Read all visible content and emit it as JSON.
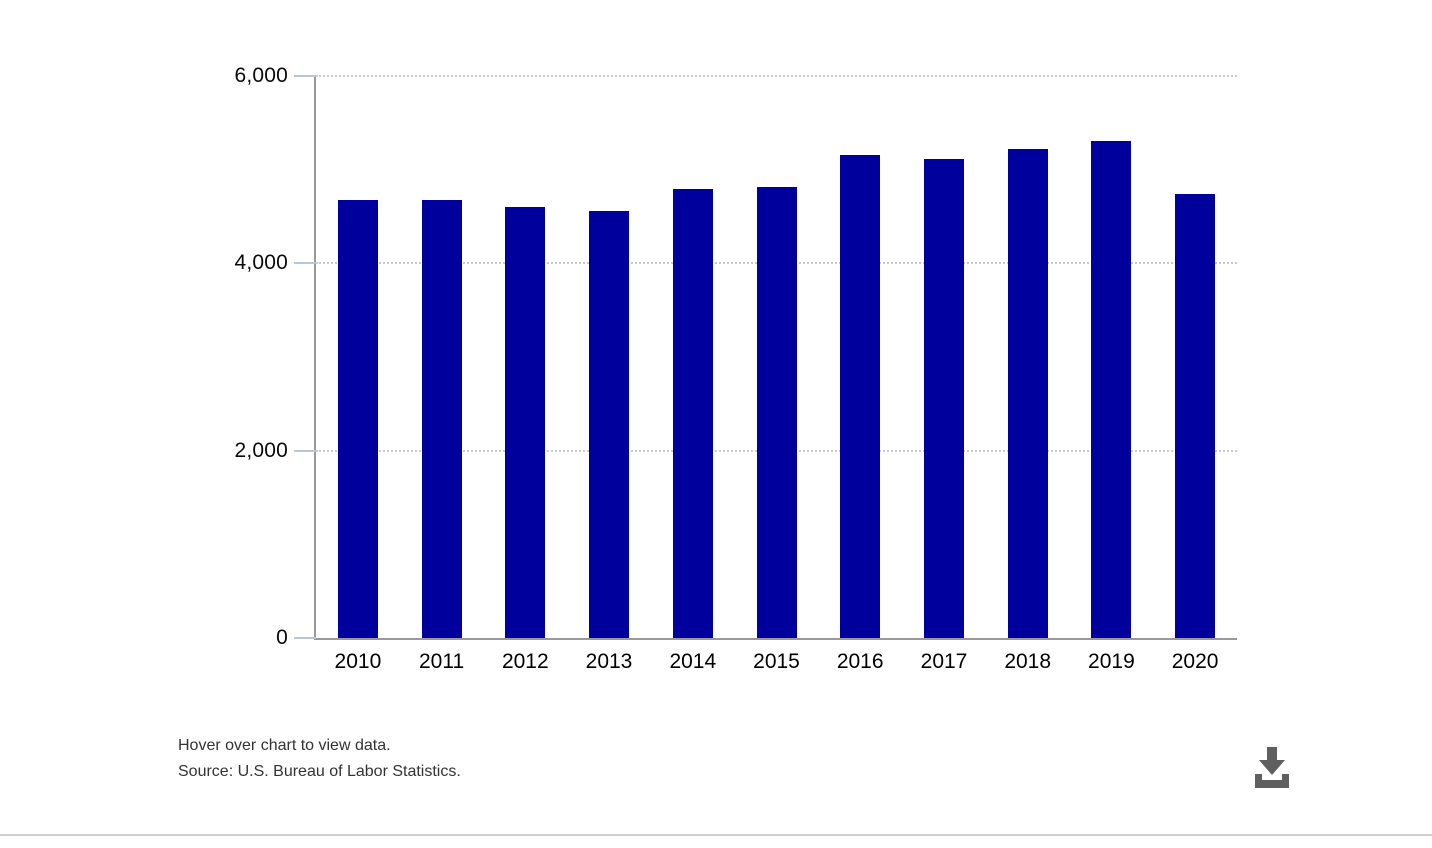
{
  "chart_data": {
    "type": "bar",
    "title": "",
    "categories": [
      "2010",
      "2011",
      "2012",
      "2013",
      "2014",
      "2015",
      "2016",
      "2017",
      "2018",
      "2019",
      "2020"
    ],
    "values": [
      4680,
      4680,
      4600,
      4560,
      4790,
      4820,
      5160,
      5110,
      5220,
      5310,
      4740
    ],
    "ylim": [
      0,
      6000
    ],
    "yticks": [
      {
        "value": 0,
        "label": "0"
      },
      {
        "value": 2000,
        "label": "2,000"
      },
      {
        "value": 4000,
        "label": "4,000"
      },
      {
        "value": 6000,
        "label": "6,000"
      }
    ],
    "xlabel": "",
    "ylabel": "",
    "grid": "horizontal-dotted",
    "legend": "none",
    "bar_color": "#00009c",
    "axis_color": "#999999",
    "tick_color": "#b9c7d4",
    "gridline_color": "#c9c9c9"
  },
  "footer": {
    "hint": "Hover over chart to view data.",
    "source": "Source: U.S. Bureau of Labor Statistics."
  },
  "icons": {
    "download": "download-icon",
    "download_color": "#5f5f5f"
  }
}
